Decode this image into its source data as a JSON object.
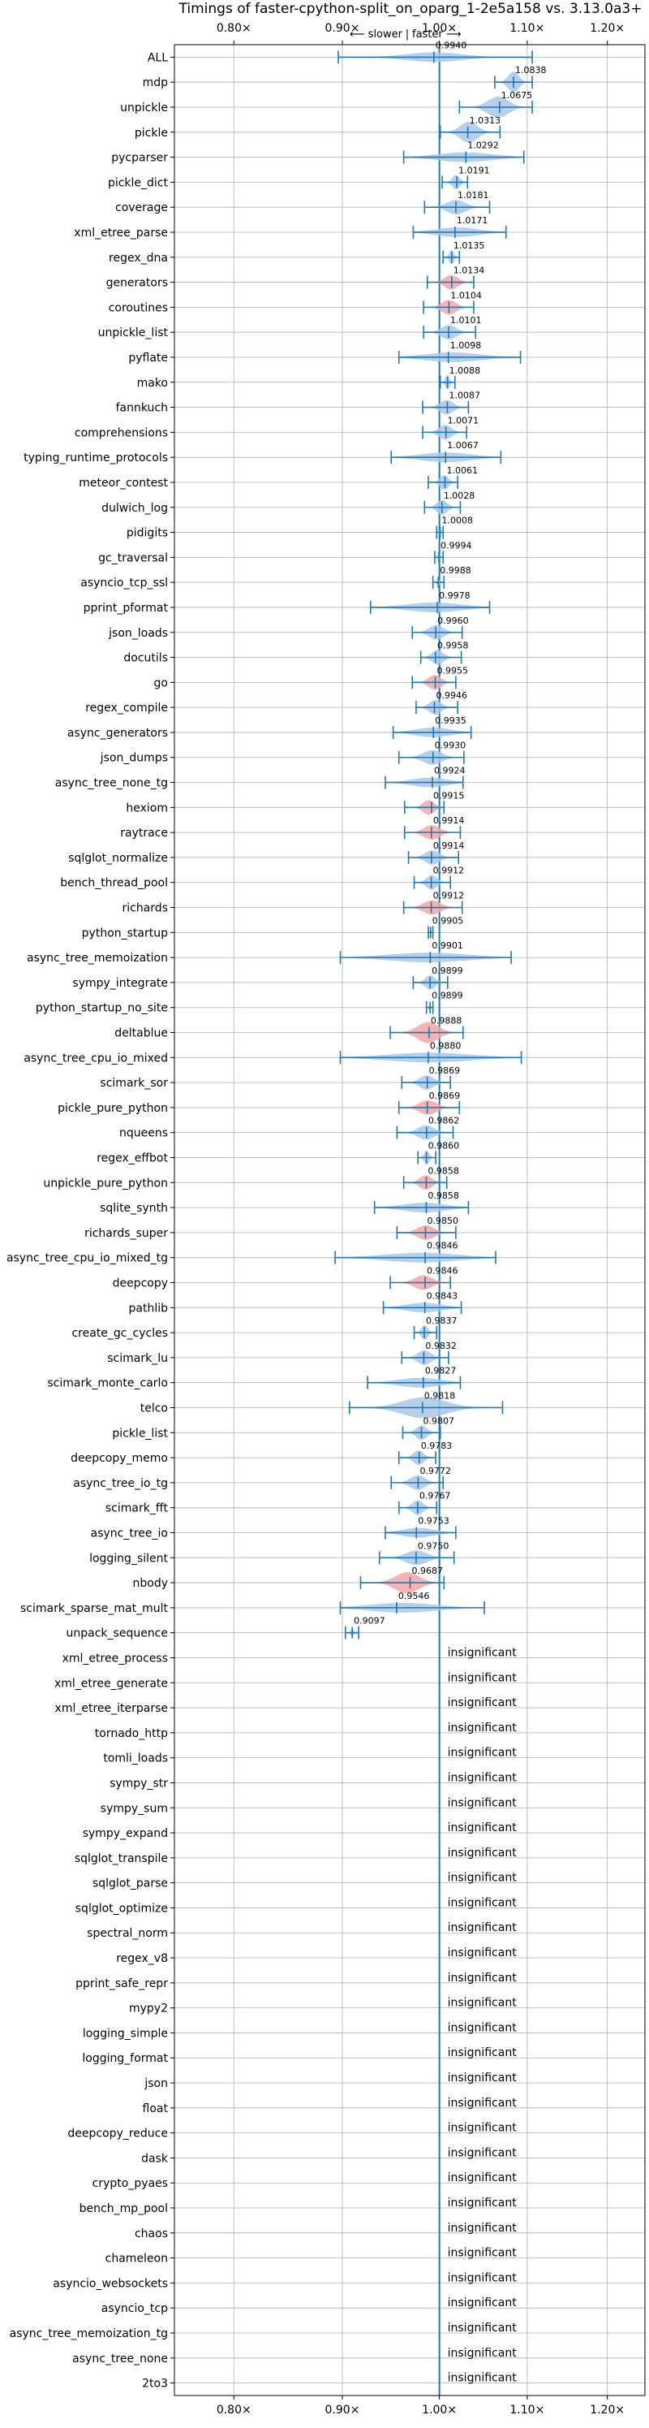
{
  "chart_data": {
    "type": "violin",
    "title": "Timings of faster-cpython-split_on_oparg_1-2e5a158 vs. 3.13.0a3+",
    "subtitle_left": "⟵ slower",
    "subtitle_right": "faster ⟶",
    "xscale": "log",
    "xlim": [
      0.75,
      1.25
    ],
    "xticks": [
      0.8,
      0.9,
      1.0,
      1.1,
      1.2
    ],
    "xtick_labels": [
      "0.80×",
      "0.90×",
      "1.00×",
      "1.10×",
      "1.20×"
    ],
    "grid": true,
    "colors": {
      "normal": "#aac8e6",
      "slower": "#f4a6a6",
      "line": "#1f77b4",
      "grid": "#b0b0b0"
    },
    "insignificant_label": "insignificant",
    "benchmarks": [
      {
        "name": "ALL",
        "value": 0.994,
        "label": "0.9940",
        "lo": 0.896,
        "hi": 1.106,
        "color": "normal",
        "kind": "narrow"
      },
      {
        "name": "mdp",
        "value": 1.0838,
        "label": "1.0838",
        "lo": 1.062,
        "hi": 1.106,
        "color": "normal",
        "kind": "wide"
      },
      {
        "name": "unpickle",
        "value": 1.0675,
        "label": "1.0675",
        "lo": 1.022,
        "hi": 1.106,
        "color": "normal",
        "kind": "wide"
      },
      {
        "name": "pickle",
        "value": 1.0313,
        "label": "1.0313",
        "lo": 1.001,
        "hi": 1.068,
        "color": "normal",
        "kind": "wide"
      },
      {
        "name": "pycparser",
        "value": 1.0292,
        "label": "1.0292",
        "lo": 0.962,
        "hi": 1.096,
        "color": "normal",
        "kind": "flat"
      },
      {
        "name": "pickle_dict",
        "value": 1.0191,
        "label": "1.0191",
        "lo": 1.003,
        "hi": 1.031,
        "color": "normal",
        "kind": "normal"
      },
      {
        "name": "coverage",
        "value": 1.0181,
        "label": "1.0181",
        "lo": 0.984,
        "hi": 1.056,
        "color": "normal",
        "kind": "normal"
      },
      {
        "name": "xml_etree_parse",
        "value": 1.0171,
        "label": "1.0171",
        "lo": 0.972,
        "hi": 1.075,
        "color": "normal",
        "kind": "flat"
      },
      {
        "name": "regex_dna",
        "value": 1.0135,
        "label": "1.0135",
        "lo": 1.004,
        "hi": 1.022,
        "color": "normal",
        "kind": "normal"
      },
      {
        "name": "generators",
        "value": 1.0134,
        "label": "1.0134",
        "lo": 0.987,
        "hi": 1.038,
        "color": "slower",
        "kind": "normal"
      },
      {
        "name": "coroutines",
        "value": 1.0104,
        "label": "1.0104",
        "lo": 0.983,
        "hi": 1.038,
        "color": "slower",
        "kind": "normal"
      },
      {
        "name": "unpickle_list",
        "value": 1.0101,
        "label": "1.0101",
        "lo": 0.983,
        "hi": 1.04,
        "color": "normal",
        "kind": "normal"
      },
      {
        "name": "pyflate",
        "value": 1.0098,
        "label": "1.0098",
        "lo": 0.957,
        "hi": 1.092,
        "color": "normal",
        "kind": "flat"
      },
      {
        "name": "mako",
        "value": 1.0088,
        "label": "1.0088",
        "lo": 1.001,
        "hi": 1.017,
        "color": "normal",
        "kind": "normal"
      },
      {
        "name": "fannkuch",
        "value": 1.0087,
        "label": "1.0087",
        "lo": 0.982,
        "hi": 1.032,
        "color": "normal",
        "kind": "normal"
      },
      {
        "name": "comprehensions",
        "value": 1.0071,
        "label": "1.0071",
        "lo": 0.982,
        "hi": 1.03,
        "color": "normal",
        "kind": "normal"
      },
      {
        "name": "typing_runtime_protocols",
        "value": 1.0067,
        "label": "1.0067",
        "lo": 0.949,
        "hi": 1.069,
        "color": "normal",
        "kind": "flat"
      },
      {
        "name": "meteor_contest",
        "value": 1.0061,
        "label": "1.0061",
        "lo": 0.988,
        "hi": 1.02,
        "color": "normal",
        "kind": "normal"
      },
      {
        "name": "dulwich_log",
        "value": 1.0028,
        "label": "1.0028",
        "lo": 0.984,
        "hi": 1.023,
        "color": "normal",
        "kind": "normal"
      },
      {
        "name": "pidigits",
        "value": 1.0008,
        "label": "1.0008",
        "lo": 0.997,
        "hi": 1.004,
        "color": "normal",
        "kind": "tiny"
      },
      {
        "name": "gc_traversal",
        "value": 0.9994,
        "label": "0.9994",
        "lo": 0.995,
        "hi": 1.004,
        "color": "normal",
        "kind": "tiny"
      },
      {
        "name": "asyncio_tcp_ssl",
        "value": 0.9988,
        "label": "0.9988",
        "lo": 0.993,
        "hi": 1.005,
        "color": "normal",
        "kind": "tiny"
      },
      {
        "name": "pprint_pformat",
        "value": 0.9978,
        "label": "0.9978",
        "lo": 0.928,
        "hi": 1.056,
        "color": "normal",
        "kind": "flat"
      },
      {
        "name": "json_loads",
        "value": 0.996,
        "label": "0.9960",
        "lo": 0.971,
        "hi": 1.025,
        "color": "normal",
        "kind": "normal"
      },
      {
        "name": "docutils",
        "value": 0.9958,
        "label": "0.9958",
        "lo": 0.98,
        "hi": 1.024,
        "color": "normal",
        "kind": "normal"
      },
      {
        "name": "go",
        "value": 0.9955,
        "label": "0.9955",
        "lo": 0.971,
        "hi": 1.018,
        "color": "slower",
        "kind": "normal"
      },
      {
        "name": "regex_compile",
        "value": 0.9946,
        "label": "0.9946",
        "lo": 0.975,
        "hi": 1.02,
        "color": "normal",
        "kind": "normal"
      },
      {
        "name": "async_generators",
        "value": 0.9935,
        "label": "0.9935",
        "lo": 0.951,
        "hi": 1.035,
        "color": "normal",
        "kind": "flat"
      },
      {
        "name": "json_dumps",
        "value": 0.993,
        "label": "0.9930",
        "lo": 0.957,
        "hi": 1.027,
        "color": "normal",
        "kind": "normal"
      },
      {
        "name": "async_tree_none_tg",
        "value": 0.9924,
        "label": "0.9924",
        "lo": 0.943,
        "hi": 1.026,
        "color": "normal",
        "kind": "flat"
      },
      {
        "name": "hexiom",
        "value": 0.9915,
        "label": "0.9915",
        "lo": 0.963,
        "hi": 1.005,
        "color": "slower",
        "kind": "normal"
      },
      {
        "name": "raytrace",
        "value": 0.9914,
        "label": "0.9914",
        "lo": 0.963,
        "hi": 1.023,
        "color": "slower",
        "kind": "normal"
      },
      {
        "name": "sqlglot_normalize",
        "value": 0.9914,
        "label": "0.9914",
        "lo": 0.967,
        "hi": 1.021,
        "color": "normal",
        "kind": "normal"
      },
      {
        "name": "bench_thread_pool",
        "value": 0.9912,
        "label": "0.9912",
        "lo": 0.973,
        "hi": 1.012,
        "color": "normal",
        "kind": "normal"
      },
      {
        "name": "richards",
        "value": 0.9912,
        "label": "0.9912",
        "lo": 0.962,
        "hi": 1.025,
        "color": "slower",
        "kind": "normal"
      },
      {
        "name": "python_startup",
        "value": 0.9905,
        "label": "0.9905",
        "lo": 0.988,
        "hi": 0.993,
        "color": "normal",
        "kind": "tiny"
      },
      {
        "name": "async_tree_memoization",
        "value": 0.9901,
        "label": "0.9901",
        "lo": 0.898,
        "hi": 1.081,
        "color": "normal",
        "kind": "flat"
      },
      {
        "name": "sympy_integrate",
        "value": 0.9899,
        "label": "0.9899",
        "lo": 0.972,
        "hi": 1.009,
        "color": "normal",
        "kind": "normal"
      },
      {
        "name": "python_startup_no_site",
        "value": 0.9899,
        "label": "0.9899",
        "lo": 0.986,
        "hi": 0.993,
        "color": "normal",
        "kind": "tiny"
      },
      {
        "name": "deltablue",
        "value": 0.9888,
        "label": "0.9888",
        "lo": 0.948,
        "hi": 1.026,
        "color": "slower",
        "kind": "wide"
      },
      {
        "name": "async_tree_cpu_io_mixed",
        "value": 0.988,
        "label": "0.9880",
        "lo": 0.898,
        "hi": 1.093,
        "color": "normal",
        "kind": "flat"
      },
      {
        "name": "scimark_sor",
        "value": 0.9869,
        "label": "0.9869",
        "lo": 0.96,
        "hi": 1.012,
        "color": "normal",
        "kind": "normal"
      },
      {
        "name": "pickle_pure_python",
        "value": 0.9869,
        "label": "0.9869",
        "lo": 0.957,
        "hi": 1.022,
        "color": "slower",
        "kind": "normal"
      },
      {
        "name": "nqueens",
        "value": 0.9862,
        "label": "0.9862",
        "lo": 0.955,
        "hi": 1.015,
        "color": "normal",
        "kind": "normal"
      },
      {
        "name": "regex_effbot",
        "value": 0.986,
        "label": "0.9860",
        "lo": 0.977,
        "hi": 0.996,
        "color": "normal",
        "kind": "normal"
      },
      {
        "name": "unpickle_pure_python",
        "value": 0.9858,
        "label": "0.9858",
        "lo": 0.962,
        "hi": 1.008,
        "color": "slower",
        "kind": "normal"
      },
      {
        "name": "sqlite_synth",
        "value": 0.9858,
        "label": "0.9858",
        "lo": 0.932,
        "hi": 1.032,
        "color": "normal",
        "kind": "flat"
      },
      {
        "name": "richards_super",
        "value": 0.985,
        "label": "0.9850",
        "lo": 0.955,
        "hi": 1.018,
        "color": "slower",
        "kind": "normal"
      },
      {
        "name": "async_tree_cpu_io_mixed_tg",
        "value": 0.9846,
        "label": "0.9846",
        "lo": 0.893,
        "hi": 1.063,
        "color": "normal",
        "kind": "flat"
      },
      {
        "name": "deepcopy",
        "value": 0.9846,
        "label": "0.9846",
        "lo": 0.948,
        "hi": 1.012,
        "color": "slower",
        "kind": "normal"
      },
      {
        "name": "pathlib",
        "value": 0.9843,
        "label": "0.9843",
        "lo": 0.941,
        "hi": 1.024,
        "color": "normal",
        "kind": "flat"
      },
      {
        "name": "create_gc_cycles",
        "value": 0.9837,
        "label": "0.9837",
        "lo": 0.973,
        "hi": 0.997,
        "color": "normal",
        "kind": "normal"
      },
      {
        "name": "scimark_lu",
        "value": 0.9832,
        "label": "0.9832",
        "lo": 0.96,
        "hi": 1.01,
        "color": "normal",
        "kind": "normal"
      },
      {
        "name": "scimark_monte_carlo",
        "value": 0.9827,
        "label": "0.9827",
        "lo": 0.925,
        "hi": 1.023,
        "color": "normal",
        "kind": "flat"
      },
      {
        "name": "telco",
        "value": 0.9818,
        "label": "0.9818",
        "lo": 0.907,
        "hi": 1.071,
        "color": "normal",
        "kind": "wide"
      },
      {
        "name": "pickle_list",
        "value": 0.9807,
        "label": "0.9807",
        "lo": 0.961,
        "hi": 1.001,
        "color": "normal",
        "kind": "normal"
      },
      {
        "name": "deepcopy_memo",
        "value": 0.9783,
        "label": "0.9783",
        "lo": 0.957,
        "hi": 0.996,
        "color": "normal",
        "kind": "normal"
      },
      {
        "name": "async_tree_io_tg",
        "value": 0.9772,
        "label": "0.9772",
        "lo": 0.949,
        "hi": 1.004,
        "color": "normal",
        "kind": "normal"
      },
      {
        "name": "scimark_fft",
        "value": 0.9767,
        "label": "0.9767",
        "lo": 0.957,
        "hi": 0.997,
        "color": "normal",
        "kind": "normal"
      },
      {
        "name": "async_tree_io",
        "value": 0.9753,
        "label": "0.9753",
        "lo": 0.943,
        "hi": 1.018,
        "color": "normal",
        "kind": "flat"
      },
      {
        "name": "logging_silent",
        "value": 0.975,
        "label": "0.9750",
        "lo": 0.937,
        "hi": 1.016,
        "color": "normal",
        "kind": "normal"
      },
      {
        "name": "nbody",
        "value": 0.9687,
        "label": "0.9687",
        "lo": 0.918,
        "hi": 1.005,
        "color": "slower",
        "kind": "wide"
      },
      {
        "name": "scimark_sparse_mat_mult",
        "value": 0.9546,
        "label": "0.9546",
        "lo": 0.898,
        "hi": 1.05,
        "color": "normal",
        "kind": "flat"
      },
      {
        "name": "unpack_sequence",
        "value": 0.9097,
        "label": "0.9097",
        "lo": 0.903,
        "hi": 0.916,
        "color": "normal",
        "kind": "tiny"
      },
      {
        "name": "xml_etree_process",
        "insignificant": true
      },
      {
        "name": "xml_etree_generate",
        "insignificant": true
      },
      {
        "name": "xml_etree_iterparse",
        "insignificant": true
      },
      {
        "name": "tornado_http",
        "insignificant": true
      },
      {
        "name": "tomli_loads",
        "insignificant": true
      },
      {
        "name": "sympy_str",
        "insignificant": true
      },
      {
        "name": "sympy_sum",
        "insignificant": true
      },
      {
        "name": "sympy_expand",
        "insignificant": true
      },
      {
        "name": "sqlglot_transpile",
        "insignificant": true
      },
      {
        "name": "sqlglot_parse",
        "insignificant": true
      },
      {
        "name": "sqlglot_optimize",
        "insignificant": true
      },
      {
        "name": "spectral_norm",
        "insignificant": true
      },
      {
        "name": "regex_v8",
        "insignificant": true
      },
      {
        "name": "pprint_safe_repr",
        "insignificant": true
      },
      {
        "name": "mypy2",
        "insignificant": true
      },
      {
        "name": "logging_simple",
        "insignificant": true
      },
      {
        "name": "logging_format",
        "insignificant": true
      },
      {
        "name": "json",
        "insignificant": true
      },
      {
        "name": "float",
        "insignificant": true
      },
      {
        "name": "deepcopy_reduce",
        "insignificant": true
      },
      {
        "name": "dask",
        "insignificant": true
      },
      {
        "name": "crypto_pyaes",
        "insignificant": true
      },
      {
        "name": "bench_mp_pool",
        "insignificant": true
      },
      {
        "name": "chaos",
        "insignificant": true
      },
      {
        "name": "chameleon",
        "insignificant": true
      },
      {
        "name": "asyncio_websockets",
        "insignificant": true
      },
      {
        "name": "asyncio_tcp",
        "insignificant": true
      },
      {
        "name": "async_tree_memoization_tg",
        "insignificant": true
      },
      {
        "name": "async_tree_none",
        "insignificant": true
      },
      {
        "name": "2to3",
        "insignificant": true
      }
    ]
  }
}
